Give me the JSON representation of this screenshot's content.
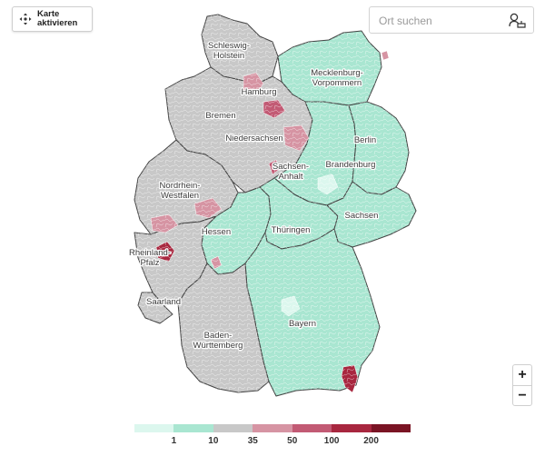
{
  "controls": {
    "activate_line1": "Karte",
    "activate_line2": "aktivieren",
    "search_placeholder": "Ort suchen",
    "zoom_in": "+",
    "zoom_out": "−"
  },
  "icons": {
    "activate": "move-arrows-icon",
    "search": "person-location-icon"
  },
  "states": [
    "Schleswig-\nHolstein",
    "Mecklenburg-\nVorpommern",
    "Hamburg",
    "Bremen",
    "Niedersachsen",
    "Berlin",
    "Brandenburg",
    "Sachsen-\nAnhalt",
    "Nordrhein-\nWestfalen",
    "Hessen",
    "Thüringen",
    "Sachsen",
    "Rheinland-\nPfalz",
    "Saarland",
    "Bayern",
    "Baden-\nWürttemberg"
  ],
  "legend": {
    "colors": [
      "#dcf7ee",
      "#a9e6d1",
      "#c8c8c8",
      "#d694a3",
      "#c25a74",
      "#a8273f",
      "#7a1424"
    ],
    "ticks": [
      "1",
      "10",
      "35",
      "50",
      "100",
      "200"
    ]
  }
}
